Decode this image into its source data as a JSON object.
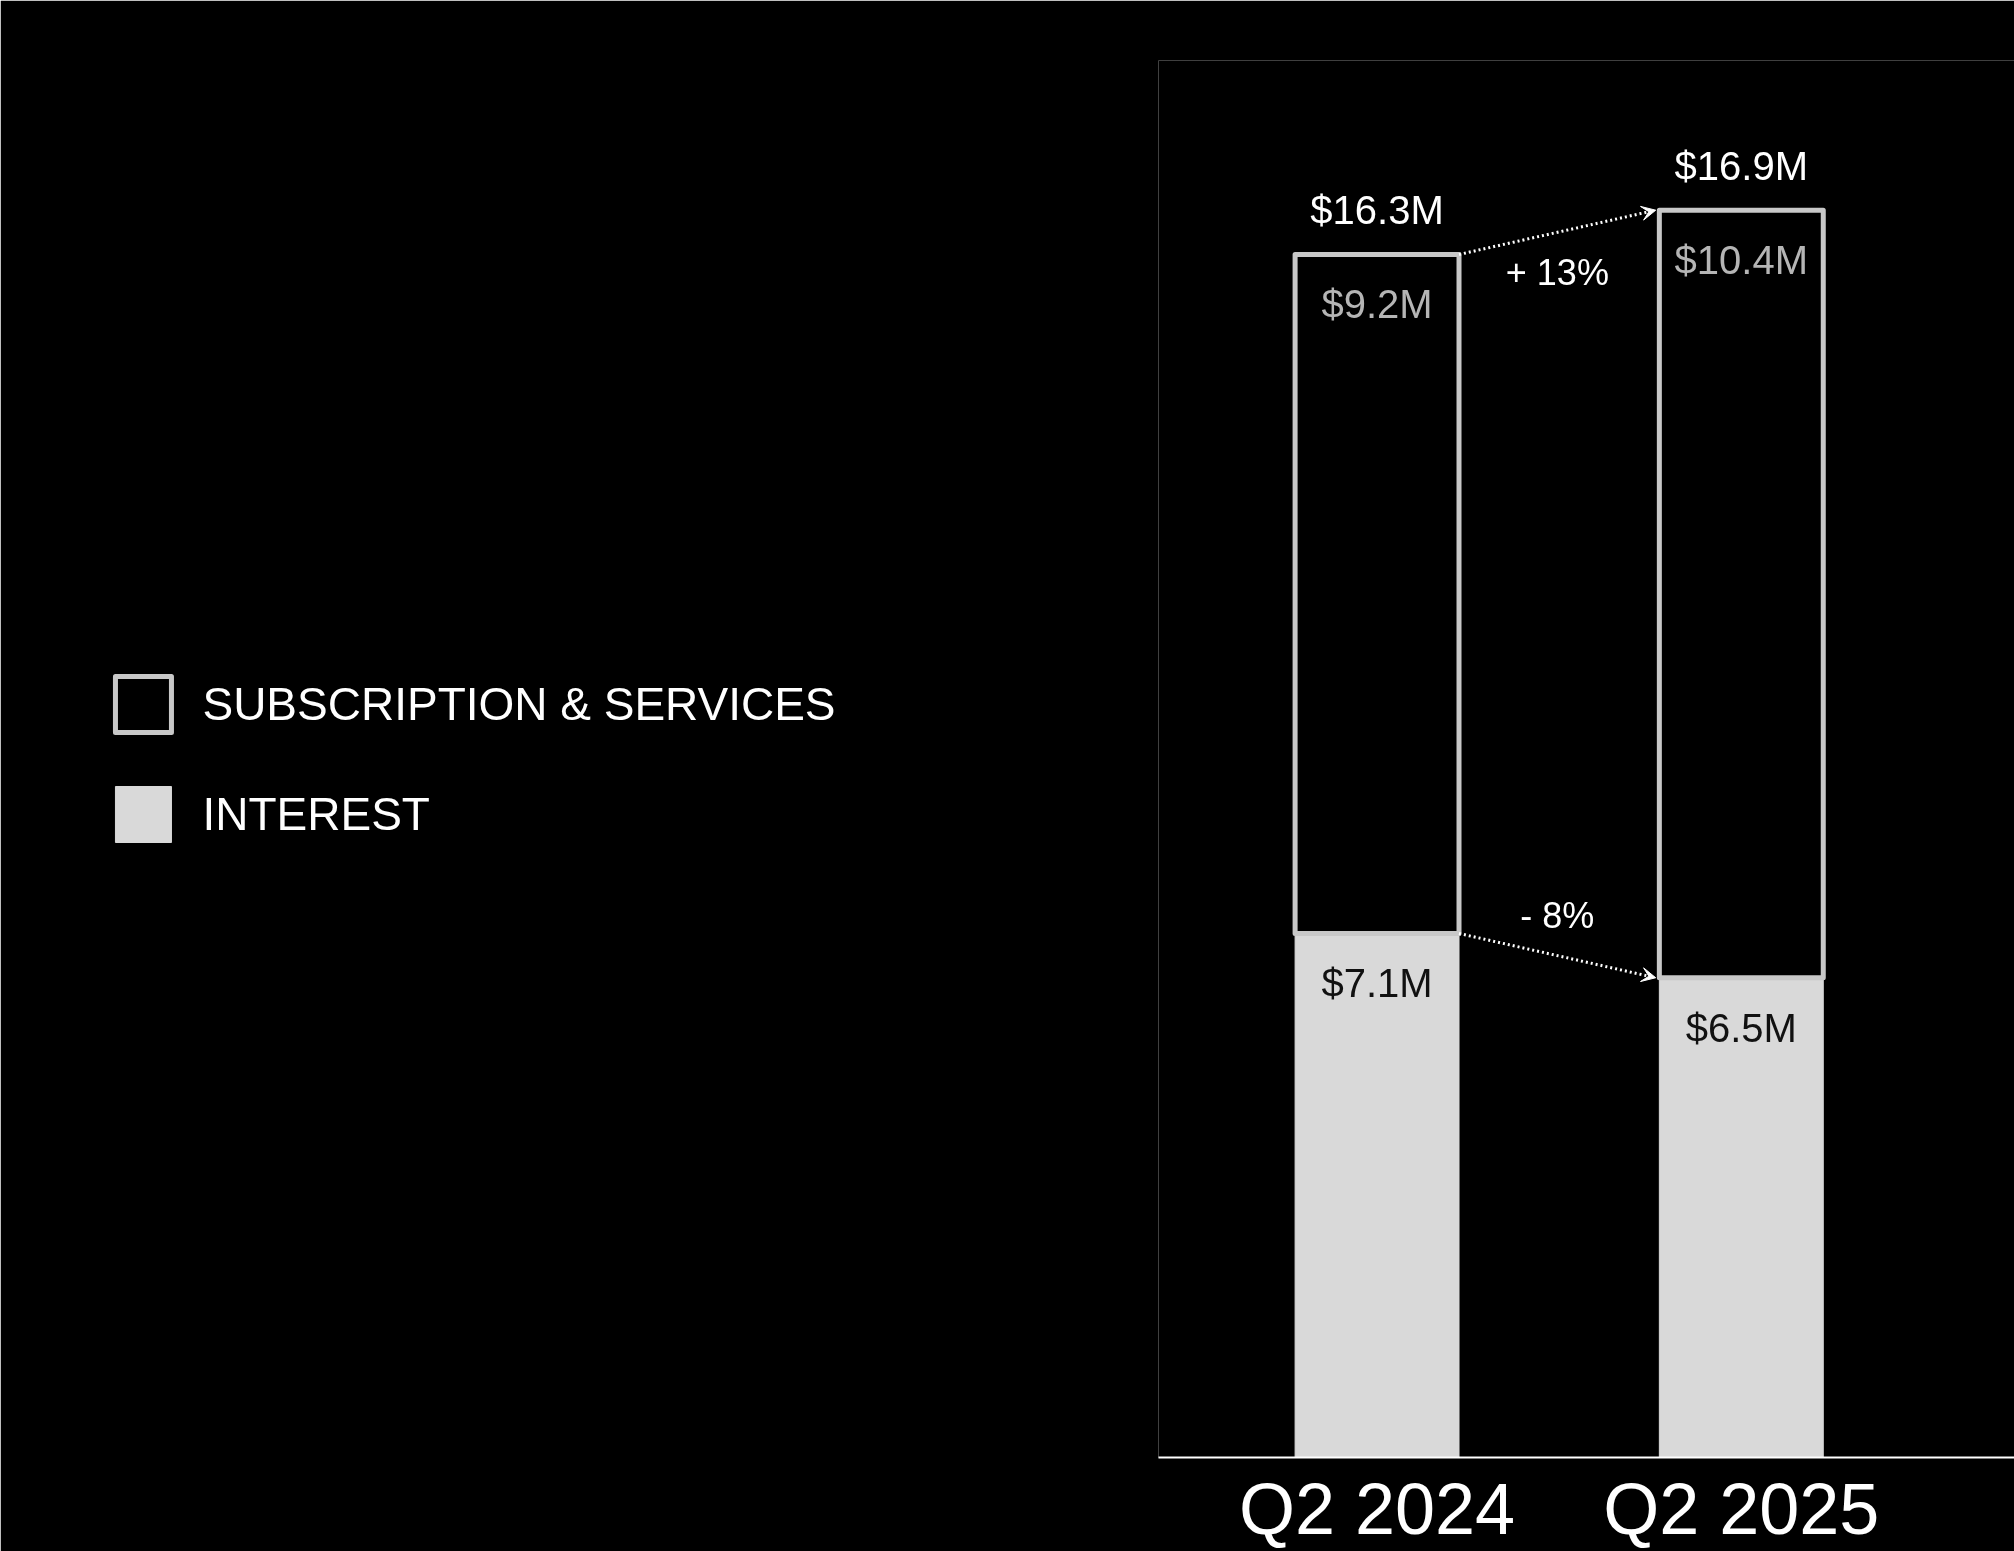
{
  "chart_data": {
    "type": "bar",
    "stacked": true,
    "categories": [
      "Q2 2024",
      "Q2 2025"
    ],
    "series": [
      {
        "name": "INTEREST",
        "color": "#d9d9d9",
        "values": [
          7.1,
          6.5
        ],
        "value_labels": [
          "$7.1M",
          "$6.5M"
        ]
      },
      {
        "name": "SUBSCRIPTION & SERVICES",
        "color": "#c8c8c8",
        "values": [
          9.2,
          10.4
        ],
        "value_labels": [
          "$9.2M",
          "$10.4M"
        ]
      }
    ],
    "totals": [
      "$16.3M",
      "$16.9M"
    ],
    "annotations": [
      "+ 13%",
      "- 8%"
    ],
    "legend": "left",
    "grid": false
  }
}
